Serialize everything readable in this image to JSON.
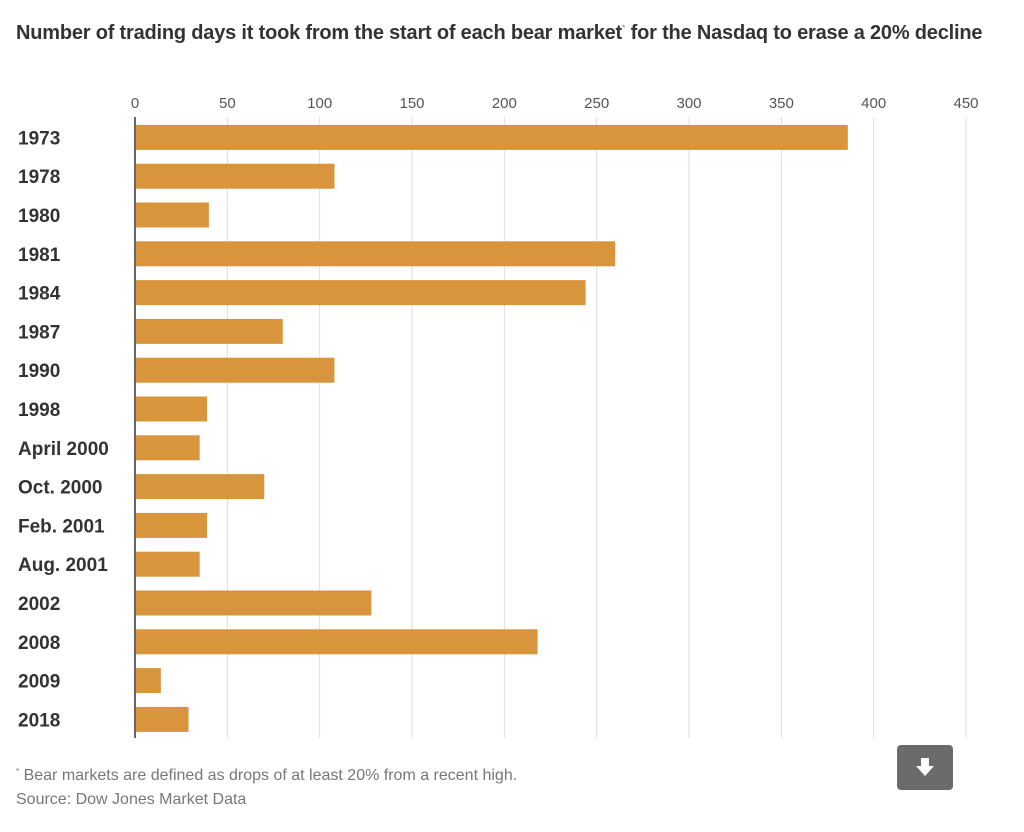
{
  "header": {
    "title": "Number of trading days it took from the start of each bear market",
    "title_marker": "*",
    "title_end": " for the Nasdaq to erase a 20% decline"
  },
  "footer": {
    "footnote_marker": "*",
    "footnote": " Bear markets are defined as drops of at least 20% from a recent high.",
    "source": "Source: Dow Jones Market Data"
  },
  "download": {
    "icon": "download-arrow-icon"
  },
  "colors": {
    "bar": "#D9953B",
    "grid": "#DDDDDD",
    "axis": "#333333",
    "button": "#6B6B6B"
  },
  "chart_data": {
    "type": "bar",
    "orientation": "horizontal",
    "title": "Number of trading days it took from the start of each bear market* for the Nasdaq to erase a 20% decline",
    "xlabel": "",
    "ylabel": "",
    "xlim": [
      0,
      450
    ],
    "xticks": [
      0,
      50,
      100,
      150,
      200,
      250,
      300,
      350,
      400,
      450
    ],
    "x_axis_position": "top",
    "grid": true,
    "categories": [
      "1973",
      "1978",
      "1980",
      "1981",
      "1984",
      "1987",
      "1990",
      "1998",
      "April 2000",
      "Oct. 2000",
      "Feb. 2001",
      "Aug. 2001",
      "2002",
      "2008",
      "2009",
      "2018"
    ],
    "values": [
      386,
      108,
      40,
      260,
      244,
      80,
      108,
      39,
      35,
      70,
      39,
      35,
      128,
      218,
      14,
      29
    ]
  }
}
